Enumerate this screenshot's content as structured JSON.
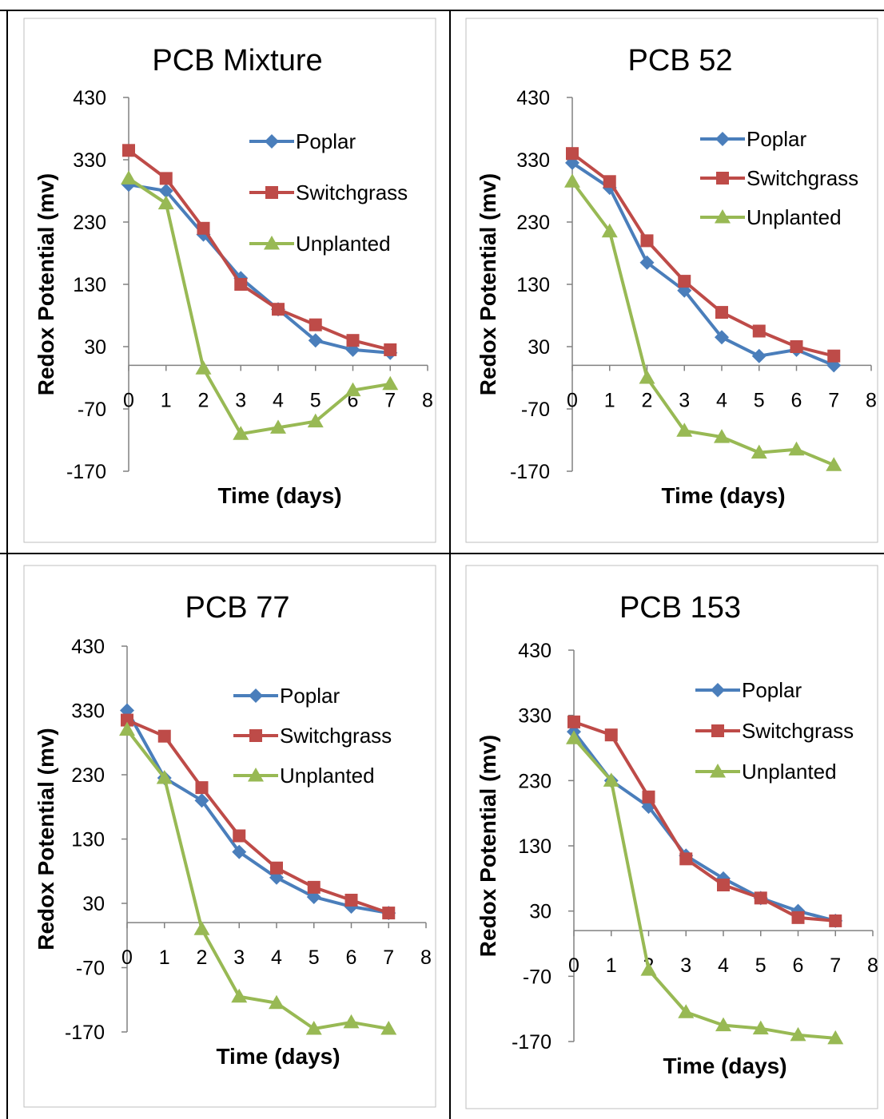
{
  "chart_data": [
    {
      "type": "line",
      "title": "PCB Mixture",
      "xlabel": "Time (days)",
      "ylabel": "Redox Potential (mv)",
      "xlim": [
        0,
        8
      ],
      "ylim": [
        -170,
        430
      ],
      "xticks": [
        0,
        1,
        2,
        3,
        4,
        5,
        6,
        7,
        8
      ],
      "yticks": [
        -170,
        -70,
        30,
        130,
        230,
        330,
        430
      ],
      "legend": "top-right",
      "grid": false,
      "x": [
        0,
        1,
        2,
        3,
        4,
        5,
        6,
        7
      ],
      "series": [
        {
          "name": "Poplar",
          "color": "#4a7ebb",
          "marker": "diamond",
          "values": [
            290,
            280,
            210,
            140,
            90,
            40,
            25,
            20
          ]
        },
        {
          "name": "Switchgrass",
          "color": "#be4b48",
          "marker": "square",
          "values": [
            345,
            300,
            220,
            130,
            90,
            65,
            40,
            25
          ]
        },
        {
          "name": "Unplanted",
          "color": "#98b954",
          "marker": "triangle",
          "values": [
            300,
            260,
            -5,
            -110,
            -100,
            -90,
            -40,
            -30
          ]
        }
      ]
    },
    {
      "type": "line",
      "title": "PCB 52",
      "xlabel": "Time (days)",
      "ylabel": "Redox Potential (mv)",
      "xlim": [
        0,
        8
      ],
      "ylim": [
        -170,
        430
      ],
      "xticks": [
        0,
        1,
        2,
        3,
        4,
        5,
        6,
        7,
        8
      ],
      "yticks": [
        -170,
        -70,
        30,
        130,
        230,
        330,
        430
      ],
      "legend": "top-right",
      "grid": false,
      "x": [
        0,
        1,
        2,
        3,
        4,
        5,
        6,
        7
      ],
      "series": [
        {
          "name": "Poplar",
          "color": "#4a7ebb",
          "marker": "diamond",
          "values": [
            325,
            285,
            165,
            120,
            45,
            15,
            25,
            0
          ]
        },
        {
          "name": "Switchgrass",
          "color": "#be4b48",
          "marker": "square",
          "values": [
            340,
            295,
            200,
            135,
            85,
            55,
            30,
            15
          ]
        },
        {
          "name": "Unplanted",
          "color": "#98b954",
          "marker": "triangle",
          "values": [
            295,
            215,
            -20,
            -105,
            -115,
            -140,
            -135,
            -160
          ]
        }
      ]
    },
    {
      "type": "line",
      "title": "PCB 77",
      "xlabel": "Time (days)",
      "ylabel": "Redox Potential (mv)",
      "xlim": [
        0,
        8
      ],
      "ylim": [
        -170,
        430
      ],
      "xticks": [
        0,
        1,
        2,
        3,
        4,
        5,
        6,
        7,
        8
      ],
      "yticks": [
        -170,
        -70,
        30,
        130,
        230,
        330,
        430
      ],
      "legend": "top-right",
      "grid": false,
      "x": [
        0,
        1,
        2,
        3,
        4,
        5,
        6,
        7
      ],
      "series": [
        {
          "name": "Poplar",
          "color": "#4a7ebb",
          "marker": "diamond",
          "values": [
            330,
            225,
            190,
            110,
            70,
            40,
            25,
            15
          ]
        },
        {
          "name": "Switchgrass",
          "color": "#be4b48",
          "marker": "square",
          "values": [
            315,
            290,
            210,
            135,
            85,
            55,
            35,
            15
          ]
        },
        {
          "name": "Unplanted",
          "color": "#98b954",
          "marker": "triangle",
          "values": [
            300,
            225,
            -10,
            -115,
            -125,
            -165,
            -155,
            -165
          ]
        }
      ]
    },
    {
      "type": "line",
      "title": "PCB 153",
      "xlabel": "Time (days)",
      "ylabel": "Redox Potential (mv)",
      "xlim": [
        0,
        8
      ],
      "ylim": [
        -170,
        430
      ],
      "xticks": [
        0,
        1,
        2,
        3,
        4,
        5,
        6,
        7,
        8
      ],
      "yticks": [
        -170,
        -70,
        30,
        130,
        230,
        330,
        430
      ],
      "legend": "top-right",
      "grid": false,
      "x": [
        0,
        1,
        2,
        3,
        4,
        5,
        6,
        7
      ],
      "series": [
        {
          "name": "Poplar",
          "color": "#4a7ebb",
          "marker": "diamond",
          "values": [
            305,
            230,
            190,
            115,
            80,
            50,
            30,
            15
          ]
        },
        {
          "name": "Switchgrass",
          "color": "#be4b48",
          "marker": "square",
          "values": [
            320,
            300,
            205,
            110,
            70,
            50,
            20,
            15
          ]
        },
        {
          "name": "Unplanted",
          "color": "#98b954",
          "marker": "triangle",
          "values": [
            295,
            230,
            -60,
            -125,
            -145,
            -150,
            -160,
            -165
          ]
        }
      ]
    }
  ]
}
